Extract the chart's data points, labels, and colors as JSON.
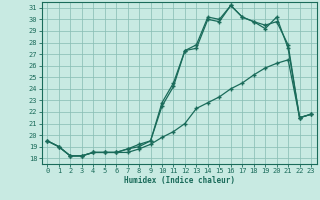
{
  "xlabel": "Humidex (Indice chaleur)",
  "background_color": "#c8eae2",
  "line_color": "#1a6b5a",
  "grid_color": "#8abfb5",
  "xlim": [
    -0.5,
    23.5
  ],
  "ylim": [
    17.5,
    31.5
  ],
  "yticks": [
    18,
    19,
    20,
    21,
    22,
    23,
    24,
    25,
    26,
    27,
    28,
    29,
    30,
    31
  ],
  "xticks": [
    0,
    1,
    2,
    3,
    4,
    5,
    6,
    7,
    8,
    9,
    10,
    11,
    12,
    13,
    14,
    15,
    16,
    17,
    18,
    19,
    20,
    21,
    22,
    23
  ],
  "series1_x": [
    0,
    1,
    2,
    3,
    4,
    5,
    6,
    7,
    8,
    9,
    10,
    11,
    12,
    13,
    14,
    15,
    16,
    17,
    18,
    19,
    20,
    21,
    22,
    23
  ],
  "series1_y": [
    19.5,
    19.0,
    18.2,
    18.2,
    18.5,
    18.5,
    18.5,
    18.5,
    18.8,
    19.2,
    19.8,
    20.3,
    21.0,
    22.3,
    22.8,
    23.3,
    24.0,
    24.5,
    25.2,
    25.8,
    26.2,
    26.5,
    21.5,
    21.8
  ],
  "series2_x": [
    0,
    1,
    2,
    3,
    4,
    5,
    6,
    7,
    8,
    9,
    10,
    11,
    12,
    13,
    14,
    15,
    16,
    17,
    18,
    19,
    20,
    21,
    22,
    23
  ],
  "series2_y": [
    19.5,
    19.0,
    18.2,
    18.2,
    18.5,
    18.5,
    18.5,
    18.8,
    19.0,
    19.5,
    22.5,
    24.2,
    27.3,
    27.5,
    30.0,
    29.8,
    31.2,
    30.2,
    29.8,
    29.2,
    30.2,
    27.5,
    21.5,
    21.8
  ],
  "series3_x": [
    0,
    1,
    2,
    3,
    4,
    5,
    6,
    7,
    8,
    9,
    10,
    11,
    12,
    13,
    14,
    15,
    16,
    17,
    18,
    19,
    20,
    21,
    22,
    23
  ],
  "series3_y": [
    19.5,
    19.0,
    18.2,
    18.2,
    18.5,
    18.5,
    18.5,
    18.8,
    19.2,
    19.5,
    22.8,
    24.5,
    27.3,
    27.8,
    30.2,
    30.0,
    31.2,
    30.2,
    29.8,
    29.5,
    29.8,
    27.8,
    21.5,
    21.8
  ]
}
